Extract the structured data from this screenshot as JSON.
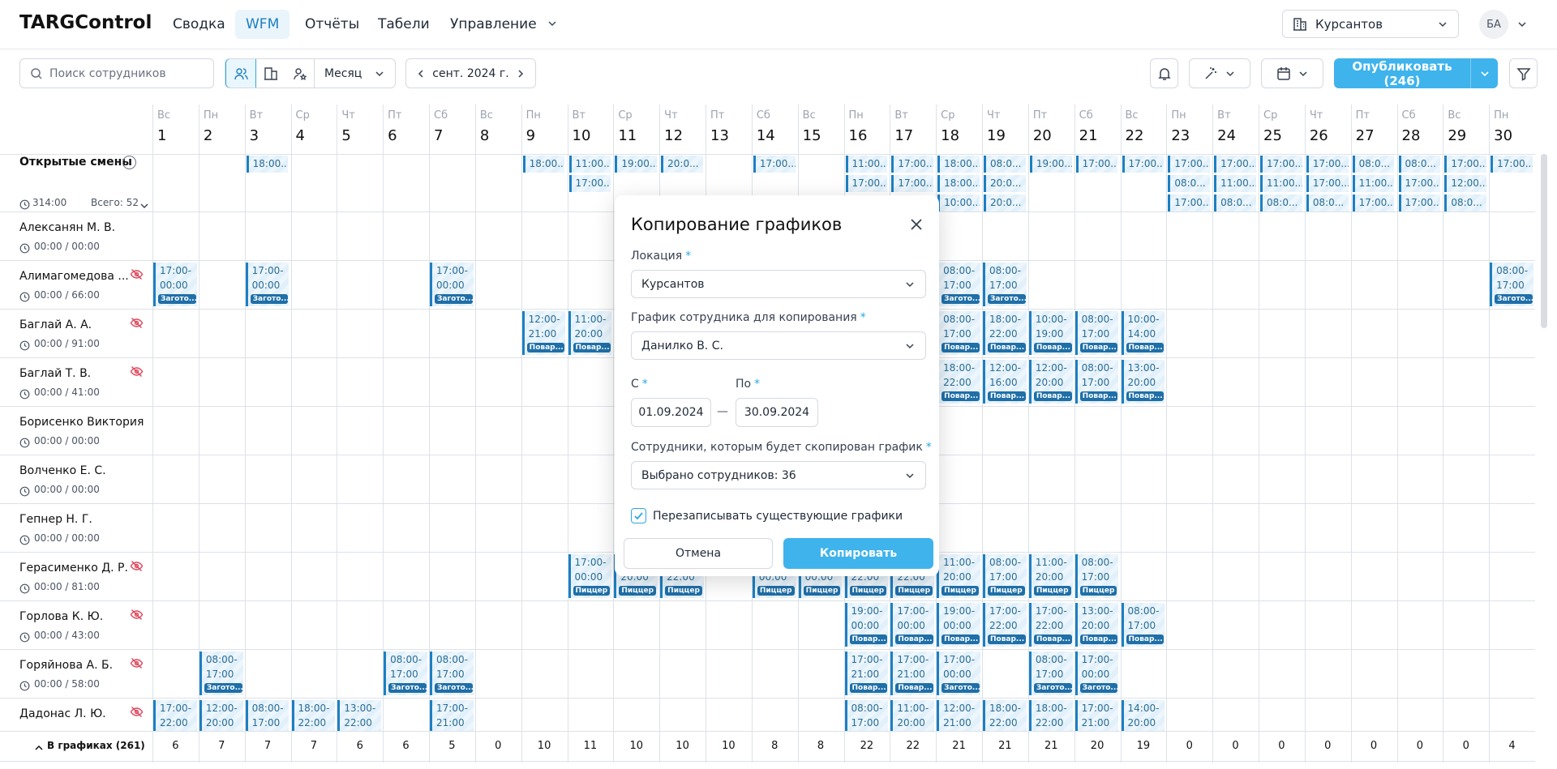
{
  "header": {
    "brand": "TARGControl",
    "nav": [
      "Сводка",
      "WFM",
      "Отчёты",
      "Табели",
      "Управление"
    ],
    "active_nav": 1,
    "location": "Курсантов",
    "avatar": "БА"
  },
  "toolbar": {
    "search_placeholder": "Поиск сотрудников",
    "period": "Месяц",
    "month": "сент. 2024 г.",
    "publish": "Опубликовать (246)"
  },
  "calendar": {
    "days": [
      {
        "dow": "Вс",
        "num": 1
      },
      {
        "dow": "Пн",
        "num": 2
      },
      {
        "dow": "Вт",
        "num": 3
      },
      {
        "dow": "Ср",
        "num": 4
      },
      {
        "dow": "Чт",
        "num": 5
      },
      {
        "dow": "Пт",
        "num": 6
      },
      {
        "dow": "Сб",
        "num": 7
      },
      {
        "dow": "Вс",
        "num": 8
      },
      {
        "dow": "Пн",
        "num": 9
      },
      {
        "dow": "Вт",
        "num": 10
      },
      {
        "dow": "Ср",
        "num": 11
      },
      {
        "dow": "Чт",
        "num": 12
      },
      {
        "dow": "Пт",
        "num": 13
      },
      {
        "dow": "Сб",
        "num": 14
      },
      {
        "dow": "Вс",
        "num": 15
      },
      {
        "dow": "Пн",
        "num": 16
      },
      {
        "dow": "Вт",
        "num": 17
      },
      {
        "dow": "Ср",
        "num": 18
      },
      {
        "dow": "Чт",
        "num": 19
      },
      {
        "dow": "Пт",
        "num": 20
      },
      {
        "dow": "Сб",
        "num": 21
      },
      {
        "dow": "Вс",
        "num": 22
      },
      {
        "dow": "Пн",
        "num": 23
      },
      {
        "dow": "Вт",
        "num": 24
      },
      {
        "dow": "Ср",
        "num": 25
      },
      {
        "dow": "Чт",
        "num": 26
      },
      {
        "dow": "Пт",
        "num": 27
      },
      {
        "dow": "Сб",
        "num": 28
      },
      {
        "dow": "Вс",
        "num": 29
      },
      {
        "dow": "Пн",
        "num": 30
      }
    ],
    "open_shifts": {
      "label": "Открытые смены",
      "hours": "314:00",
      "total": "Всего: 52",
      "cells": [
        {
          "day": 3,
          "times": [
            "18:00..."
          ]
        },
        {
          "day": 9,
          "times": [
            "18:00..."
          ]
        },
        {
          "day": 10,
          "times": [
            "11:00...",
            "17:00..."
          ]
        },
        {
          "day": 11,
          "times": [
            "19:00..."
          ]
        },
        {
          "day": 12,
          "times": [
            "20:0..."
          ]
        },
        {
          "day": 14,
          "times": [
            "17:00..."
          ]
        },
        {
          "day": 16,
          "times": [
            "11:00...",
            "17:00..."
          ]
        },
        {
          "day": 17,
          "times": [
            "17:00...",
            "17:00..."
          ]
        },
        {
          "day": 18,
          "times": [
            "18:00...",
            "18:00...",
            "10:00..."
          ]
        },
        {
          "day": 19,
          "times": [
            "08:0...",
            "20:0...",
            "20:0..."
          ]
        },
        {
          "day": 20,
          "times": [
            "19:00..."
          ]
        },
        {
          "day": 21,
          "times": [
            "17:00..."
          ]
        },
        {
          "day": 22,
          "times": [
            "17:00..."
          ]
        },
        {
          "day": 23,
          "times": [
            "17:00...",
            "08:0...",
            "17:00..."
          ]
        },
        {
          "day": 24,
          "times": [
            "17:00...",
            "11:00...",
            "08:0..."
          ]
        },
        {
          "day": 25,
          "times": [
            "17:00...",
            "11:00...",
            "08:0..."
          ]
        },
        {
          "day": 26,
          "times": [
            "17:00...",
            "17:00...",
            "08:0..."
          ]
        },
        {
          "day": 27,
          "times": [
            "08:0...",
            "11:00...",
            "17:00..."
          ]
        },
        {
          "day": 28,
          "times": [
            "08:0...",
            "17:00...",
            "17:00..."
          ]
        },
        {
          "day": 29,
          "times": [
            "17:00...",
            "12:00...",
            "08:0..."
          ]
        },
        {
          "day": 30,
          "times": [
            "17:00..."
          ]
        }
      ]
    },
    "employees": [
      {
        "name": "Алексанян М. В.",
        "hours": "00:00 / 00:00",
        "hidden": false,
        "shifts": []
      },
      {
        "name": "Алимагомедова ...",
        "hours": "00:00 / 66:00",
        "hidden": true,
        "shifts": [
          {
            "day": 1,
            "start": "17:00-",
            "end": "00:00",
            "role": "Загото..."
          },
          {
            "day": 3,
            "start": "17:00-",
            "end": "00:00",
            "role": "Загото..."
          },
          {
            "day": 7,
            "start": "17:00-",
            "end": "00:00",
            "role": "Загото..."
          },
          {
            "day": 18,
            "start": "08:00-",
            "end": "17:00",
            "role": "Загото..."
          },
          {
            "day": 19,
            "start": "08:00-",
            "end": "17:00",
            "role": "Загото..."
          },
          {
            "day": 30,
            "start": "08:00-",
            "end": "17:00",
            "role": "Загото..."
          }
        ]
      },
      {
        "name": "Баглай А. А.",
        "hours": "00:00 / 91:00",
        "hidden": true,
        "shifts": [
          {
            "day": 9,
            "start": "12:00-",
            "end": "21:00",
            "role": "Повар..."
          },
          {
            "day": 10,
            "start": "11:00-",
            "end": "20:00",
            "role": "Повар..."
          },
          {
            "day": 18,
            "start": "08:00-",
            "end": "17:00",
            "role": "Повар..."
          },
          {
            "day": 19,
            "start": "18:00-",
            "end": "22:00",
            "role": "Повар..."
          },
          {
            "day": 20,
            "start": "10:00-",
            "end": "19:00",
            "role": "Повар..."
          },
          {
            "day": 21,
            "start": "08:00-",
            "end": "17:00",
            "role": "Повар..."
          },
          {
            "day": 22,
            "start": "10:00-",
            "end": "14:00",
            "role": "Повар..."
          }
        ]
      },
      {
        "name": "Баглай Т. В.",
        "hours": "00:00 / 41:00",
        "hidden": true,
        "shifts": [
          {
            "day": 18,
            "start": "18:00-",
            "end": "22:00",
            "role": "Повар..."
          },
          {
            "day": 19,
            "start": "12:00-",
            "end": "16:00",
            "role": "Повар..."
          },
          {
            "day": 20,
            "start": "12:00-",
            "end": "20:00",
            "role": "Повар..."
          },
          {
            "day": 21,
            "start": "08:00-",
            "end": "17:00",
            "role": "Повар..."
          },
          {
            "day": 22,
            "start": "13:00-",
            "end": "20:00",
            "role": "Повар..."
          }
        ]
      },
      {
        "name": "Борисенко Виктория",
        "hours": "00:00 / 00:00",
        "hidden": false,
        "shifts": []
      },
      {
        "name": "Волченко Е. С.",
        "hours": "00:00 / 00:00",
        "hidden": false,
        "shifts": []
      },
      {
        "name": "Гепнер Н. Г.",
        "hours": "00:00 / 00:00",
        "hidden": false,
        "shifts": []
      },
      {
        "name": "Герасименко Д. Р.",
        "hours": "00:00 / 81:00",
        "hidden": true,
        "shifts": [
          {
            "day": 10,
            "start": "17:00-",
            "end": "00:00",
            "role": "Пиццер"
          },
          {
            "day": 11,
            "end": "20:00",
            "role": "Пиццер"
          },
          {
            "day": 12,
            "end": "22:00",
            "role": "Пиццер"
          },
          {
            "day": 14,
            "end": "00:00",
            "role": "Пиццер"
          },
          {
            "day": 15,
            "end": "00:00",
            "role": "Пиццер"
          },
          {
            "day": 16,
            "end": "22:00",
            "role": "Пиццер"
          },
          {
            "day": 17,
            "end": "22:00",
            "role": "Пиццер"
          },
          {
            "day": 18,
            "start": "11:00-",
            "end": "20:00",
            "role": "Пиццер"
          },
          {
            "day": 19,
            "start": "08:00-",
            "end": "17:00",
            "role": "Пиццер"
          },
          {
            "day": 20,
            "start": "11:00-",
            "end": "20:00",
            "role": "Пиццер"
          },
          {
            "day": 21,
            "start": "08:00-",
            "end": "17:00",
            "role": "Пиццер"
          }
        ]
      },
      {
        "name": "Горлова К. Ю.",
        "hours": "00:00 / 43:00",
        "hidden": true,
        "shifts": [
          {
            "day": 16,
            "start": "19:00-",
            "end": "00:00",
            "role": "Повар..."
          },
          {
            "day": 17,
            "start": "17:00-",
            "end": "00:00",
            "role": "Повар..."
          },
          {
            "day": 18,
            "start": "19:00-",
            "end": "00:00",
            "role": "Повар..."
          },
          {
            "day": 19,
            "start": "17:00-",
            "end": "22:00",
            "role": "Повар..."
          },
          {
            "day": 20,
            "start": "17:00-",
            "end": "22:00",
            "role": "Повар..."
          },
          {
            "day": 21,
            "start": "13:00-",
            "end": "20:00",
            "role": "Повар..."
          },
          {
            "day": 22,
            "start": "08:00-",
            "end": "17:00",
            "role": "Повар..."
          }
        ]
      },
      {
        "name": "Горяйнова А. Б.",
        "hours": "00:00 / 58:00",
        "hidden": true,
        "shifts": [
          {
            "day": 2,
            "start": "08:00-",
            "end": "17:00",
            "role": "Загото..."
          },
          {
            "day": 6,
            "start": "08:00-",
            "end": "17:00",
            "role": "Загото..."
          },
          {
            "day": 7,
            "start": "08:00-",
            "end": "17:00",
            "role": "Загото..."
          },
          {
            "day": 16,
            "start": "17:00-",
            "end": "21:00",
            "role": "Повар..."
          },
          {
            "day": 17,
            "start": "17:00-",
            "end": "21:00",
            "role": "Повар..."
          },
          {
            "day": 18,
            "start": "17:00-",
            "end": "00:00",
            "role": "Загото..."
          },
          {
            "day": 20,
            "start": "08:00-",
            "end": "17:00",
            "role": "Загото..."
          },
          {
            "day": 21,
            "start": "17:00-",
            "end": "00:00",
            "role": "Загото..."
          }
        ]
      },
      {
        "name": "Дадонас Л. Ю.",
        "hidden": true,
        "shifts": [
          {
            "day": 1,
            "start": "17:00-",
            "end": "22:00"
          },
          {
            "day": 2,
            "start": "12:00-",
            "end": "20:00"
          },
          {
            "day": 3,
            "start": "08:00-",
            "end": "17:00"
          },
          {
            "day": 4,
            "start": "18:00-",
            "end": "22:00"
          },
          {
            "day": 5,
            "start": "13:00-",
            "end": "22:00"
          },
          {
            "day": 7,
            "start": "17:00-",
            "end": "21:00"
          },
          {
            "day": 16,
            "start": "08:00-",
            "end": "17:00"
          },
          {
            "day": 17,
            "start": "11:00-",
            "end": "20:00"
          },
          {
            "day": 18,
            "start": "12:00-",
            "end": "21:00"
          },
          {
            "day": 19,
            "start": "18:00-",
            "end": "22:00"
          },
          {
            "day": 20,
            "start": "18:00-",
            "end": "22:00"
          },
          {
            "day": 21,
            "start": "17:00-",
            "end": "21:00"
          },
          {
            "day": 22,
            "start": "14:00-",
            "end": "20:00"
          }
        ]
      }
    ],
    "footer": {
      "label": "В графиках (261)",
      "counts": [
        6,
        7,
        7,
        7,
        6,
        6,
        5,
        0,
        10,
        11,
        10,
        10,
        10,
        8,
        8,
        22,
        22,
        21,
        21,
        21,
        20,
        19,
        0,
        0,
        0,
        0,
        0,
        0,
        0,
        4
      ]
    }
  },
  "dialog": {
    "title": "Копирование графиков",
    "required_mark": "*",
    "location_label": "Локация",
    "location_value": "Курсантов",
    "source_label": "График сотрудника для копирования",
    "source_value": "Данилко В. С.",
    "from_label": "С",
    "to_label": "По",
    "from_value": "01.09.2024",
    "range_separator": "—",
    "to_value": "30.09.2024",
    "targets_label": "Сотрудники, которым будет скопирован график",
    "targets_value": "Выбрано сотрудников: 36",
    "overwrite_label": "Перезаписывать существующие графики",
    "overwrite": true,
    "cancel": "Отмена",
    "confirm": "Копировать"
  }
}
